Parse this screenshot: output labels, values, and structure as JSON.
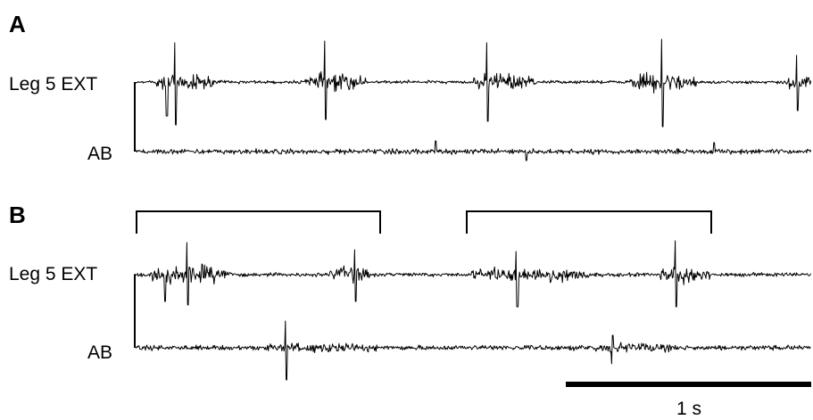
{
  "panels": [
    {
      "letter": "A",
      "traces": [
        {
          "label": "Leg 5 EXT"
        },
        {
          "label": "AB"
        }
      ]
    },
    {
      "letter": "B",
      "traces": [
        {
          "label": "Leg 5 EXT"
        },
        {
          "label": "AB"
        }
      ]
    }
  ],
  "scale_bar": {
    "label": "1 s"
  }
}
